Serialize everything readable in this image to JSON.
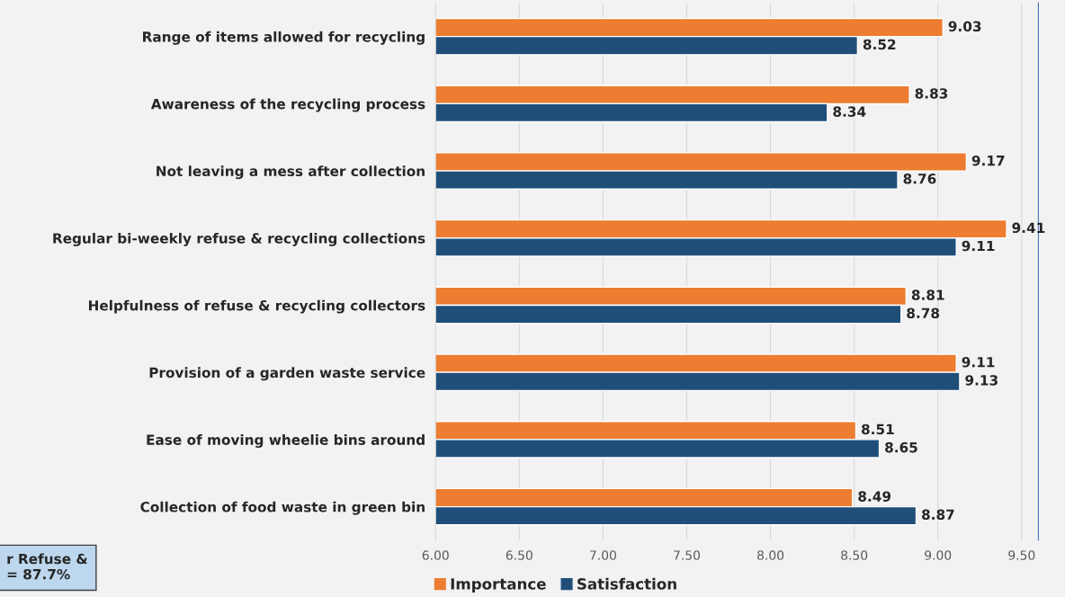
{
  "chart_data": {
    "type": "bar",
    "orientation": "horizontal",
    "categories": [
      "Range of items allowed for recycling",
      "Awareness of the recycling process",
      "Not leaving a mess after collection",
      "Regular bi-weekly refuse & recycling collections",
      "Helpfulness of refuse & recycling collectors",
      "Provision of a garden waste service",
      "Ease of moving wheelie bins around",
      "Collection of food waste in green bin"
    ],
    "series": [
      {
        "name": "Importance",
        "color": "#ed7d31",
        "values": [
          9.03,
          8.83,
          9.17,
          9.41,
          8.81,
          9.11,
          8.51,
          8.49
        ]
      },
      {
        "name": "Satisfaction",
        "color": "#1f4e79",
        "values": [
          8.52,
          8.34,
          8.76,
          9.11,
          8.78,
          9.13,
          8.65,
          8.87
        ]
      }
    ],
    "xlim": [
      6,
      9.6
    ],
    "xticks": [
      {
        "value": 6,
        "label": "6.00"
      },
      {
        "value": 6.5,
        "label": "6.50"
      },
      {
        "value": 7,
        "label": "7.00"
      },
      {
        "value": 7.5,
        "label": "7.50"
      },
      {
        "value": 8,
        "label": "8.00"
      },
      {
        "value": 8.5,
        "label": "8.50"
      },
      {
        "value": 9,
        "label": "9.00"
      },
      {
        "value": 9.5,
        "label": "9.50"
      }
    ],
    "data_labels": true,
    "grid": "x",
    "legend": "bottom",
    "annotations": [
      "r Refuse &\n= 87.7%"
    ]
  }
}
